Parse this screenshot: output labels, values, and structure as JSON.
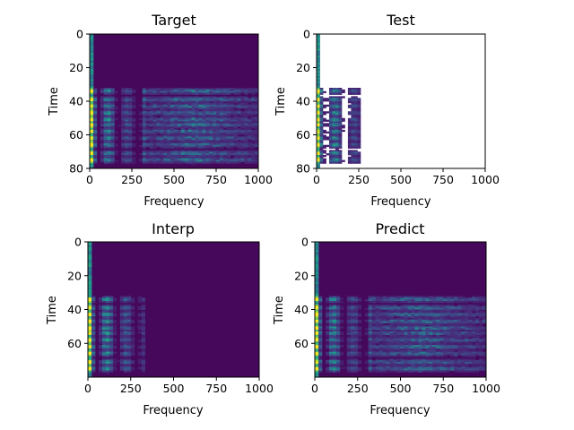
{
  "chart_data": [
    {
      "type": "heatmap",
      "title": "Target",
      "xlabel": "Frequency",
      "ylabel": "Time",
      "xlim": [
        0,
        1000
      ],
      "ylim": [
        80,
        0
      ],
      "xticks": [
        "0",
        "250",
        "500",
        "750",
        "1000"
      ],
      "yticks": [
        "0",
        "20",
        "40",
        "60",
        "80"
      ],
      "data_x_range": [
        0,
        1000
      ],
      "data_y_range": [
        0,
        80
      ],
      "colormap": "viridis"
    },
    {
      "type": "heatmap",
      "title": "Test",
      "xlabel": "Frequency",
      "ylabel": "Time",
      "xlim": [
        0,
        1000
      ],
      "ylim": [
        80,
        0
      ],
      "xticks": [
        "0",
        "250",
        "500",
        "750",
        "1000"
      ],
      "yticks": [
        "0",
        "20",
        "40",
        "60",
        "80"
      ],
      "data_x_range": [
        0,
        260
      ],
      "data_y_range": [
        0,
        80
      ],
      "colormap": "viridis"
    },
    {
      "type": "heatmap",
      "title": "Interp",
      "xlabel": "Frequency",
      "ylabel": "Time",
      "xlim": [
        0,
        1000
      ],
      "ylim": [
        80,
        0
      ],
      "xticks": [
        "0",
        "250",
        "500",
        "750",
        "1000"
      ],
      "yticks": [
        "0",
        "20",
        "40",
        "60"
      ],
      "data_x_range": [
        0,
        1000
      ],
      "data_y_range": [
        0,
        80
      ],
      "colormap": "viridis"
    },
    {
      "type": "heatmap",
      "title": "Predict",
      "xlabel": "Frequency",
      "ylabel": "Time",
      "xlim": [
        0,
        1000
      ],
      "ylim": [
        80,
        0
      ],
      "xticks": [
        "0",
        "250",
        "500",
        "750",
        "1000"
      ],
      "yticks": [
        "0",
        "20",
        "40",
        "60"
      ],
      "data_x_range": [
        0,
        1000
      ],
      "data_y_range": [
        0,
        80
      ],
      "colormap": "viridis"
    }
  ]
}
